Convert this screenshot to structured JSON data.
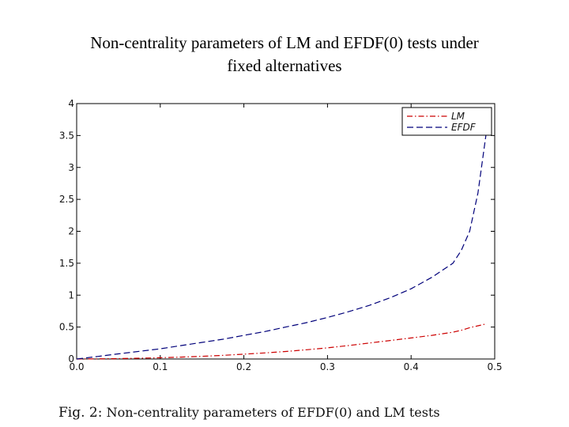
{
  "slide": {
    "title_line1": "Non-centrality parameters of LM and EFDF(0) tests under",
    "title_line2": "fixed alternatives"
  },
  "caption": {
    "label": "Fig. 2:",
    "text": "Non-centrality parameters of EFDF(0) and LM tests"
  },
  "chart_data": {
    "type": "line",
    "title": "",
    "xlabel": "",
    "ylabel": "",
    "xlim": [
      0,
      0.5
    ],
    "ylim": [
      0,
      4
    ],
    "x_ticks": [
      "0.0",
      "0.1",
      "0.2",
      "0.3",
      "0.4",
      "0.5"
    ],
    "y_ticks": [
      "0",
      "0.5",
      "1",
      "1.5",
      "2",
      "2.5",
      "3",
      "3.5",
      "4"
    ],
    "grid": false,
    "legend_position": "top-right",
    "x": [
      0.0,
      0.025,
      0.05,
      0.075,
      0.1,
      0.125,
      0.15,
      0.175,
      0.2,
      0.225,
      0.25,
      0.275,
      0.3,
      0.325,
      0.35,
      0.375,
      0.4,
      0.425,
      0.45,
      0.46,
      0.47,
      0.48,
      0.49
    ],
    "series": [
      {
        "name": "LM",
        "color": "#cc0000",
        "dash": "dash-dot",
        "values": [
          0.0,
          0.002,
          0.006,
          0.012,
          0.02,
          0.03,
          0.042,
          0.057,
          0.075,
          0.095,
          0.118,
          0.145,
          0.175,
          0.21,
          0.25,
          0.29,
          0.33,
          0.37,
          0.42,
          0.45,
          0.49,
          0.52,
          0.55
        ]
      },
      {
        "name": "EFDF",
        "color": "#00007a",
        "dash": "dashed",
        "values": [
          0.0,
          0.04,
          0.08,
          0.12,
          0.16,
          0.21,
          0.26,
          0.31,
          0.37,
          0.43,
          0.5,
          0.57,
          0.65,
          0.74,
          0.84,
          0.96,
          1.1,
          1.28,
          1.5,
          1.7,
          2.0,
          2.6,
          3.55
        ]
      }
    ]
  }
}
